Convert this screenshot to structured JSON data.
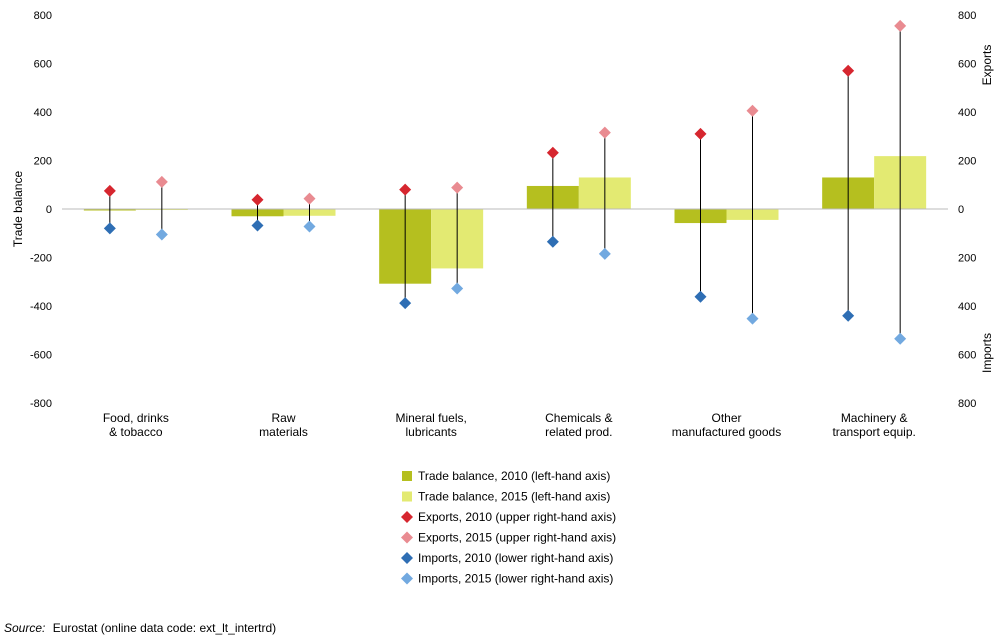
{
  "chart_data": {
    "type": "bar",
    "categories": [
      [
        "Food, drinks",
        "& tobacco"
      ],
      [
        "Raw",
        "materials"
      ],
      [
        "Mineral fuels,",
        "lubricants"
      ],
      [
        "Chemicals &",
        "related prod."
      ],
      [
        "Other",
        "manufactured goods"
      ],
      [
        "Machinery &",
        "transport equip."
      ]
    ],
    "left_axis": {
      "label": "Trade balance",
      "min": -800,
      "max": 800,
      "step": 200
    },
    "right_axis_upper": {
      "label": "Exports",
      "min": 0,
      "max": 800,
      "step": 200
    },
    "right_axis_lower": {
      "label": "Imports",
      "min": 0,
      "max": 800,
      "step": 200
    },
    "series": [
      {
        "name": "Trade balance, 2010 (left-hand axis)",
        "kind": "bar",
        "year": 2010,
        "color": "#b5bf1f",
        "values": [
          -3,
          -30,
          -308,
          95,
          -58,
          130
        ]
      },
      {
        "name": "Trade balance, 2015 (left-hand axis)",
        "kind": "bar",
        "year": 2015,
        "color": "#e3ea72",
        "values": [
          2,
          -28,
          -245,
          130,
          -45,
          218
        ]
      },
      {
        "name": "Exports, 2010 (upper right-hand axis)",
        "kind": "marker",
        "year": 2010,
        "color": "#d6262f",
        "values": [
          75,
          38,
          80,
          232,
          310,
          570
        ]
      },
      {
        "name": "Exports, 2015 (upper right-hand axis)",
        "kind": "marker",
        "year": 2015,
        "color": "#e98b91",
        "values": [
          112,
          43,
          88,
          315,
          405,
          755
        ]
      },
      {
        "name": "Imports, 2010 (lower right-hand axis)",
        "kind": "marker-down",
        "year": 2010,
        "color": "#2e6eb4",
        "values": [
          80,
          68,
          388,
          135,
          362,
          440
        ]
      },
      {
        "name": "Imports, 2015 (lower right-hand axis)",
        "kind": "marker-down",
        "year": 2015,
        "color": "#72a9e0",
        "values": [
          105,
          72,
          328,
          185,
          452,
          535
        ]
      }
    ],
    "gridlines": false,
    "legend_position": "bottom"
  },
  "source": {
    "label": "Source:",
    "text": "Eurostat (online data code: ext_lt_intertrd)"
  }
}
